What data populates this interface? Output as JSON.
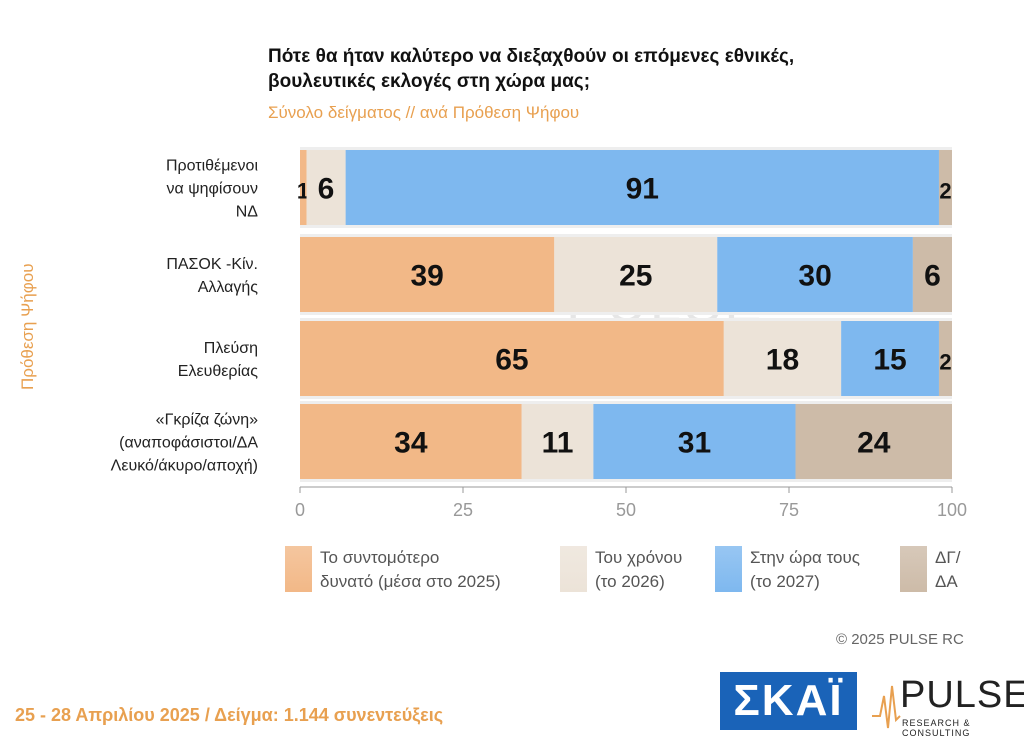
{
  "title": "Πότε θα ήταν καλύτερο να διεξαχθούν οι επόμενες εθνικές, βουλευτικές εκλογές στη χώρα μας;",
  "subtitle": "Σύνολο δείγματος // ανά Πρόθεση Ψήφου",
  "copyright": "©  2025  PULSE RC",
  "footer": "25 - 28 Απριλίου 2025  /  Δείγμα:  1.144 συνεντεύξεις",
  "logos": {
    "skai": "ΣΚΑΪ",
    "pulse": "PULSE",
    "pulse_sub": "RESEARCH & CONSULTING"
  },
  "colors": {
    "soonest": "#f2b887",
    "year2026": "#ece3d8",
    "ontime": "#7eb8ef",
    "dk": "#cdbba8",
    "axis": "#999999",
    "accent": "#e8a050"
  },
  "chart_data": {
    "type": "bar",
    "orientation": "horizontal",
    "stacked": true,
    "title": "Πότε θα ήταν καλύτερο να διεξαχθούν οι επόμενες εθνικές, βουλευτικές εκλογές στη χώρα μας;",
    "subtitle": "Σύνολο δείγματος // ανά Πρόθεση Ψήφου",
    "ylabel": "Πρόθεση Ψήφου",
    "xlabel": "",
    "xlim": [
      0,
      100
    ],
    "xticks": [
      "0",
      "25",
      "50",
      "75",
      "100"
    ],
    "categories": [
      "Προτιθέμενοι να ψηφίσουν ΝΔ",
      "ΠΑΣΟΚ -Κίν. Αλλαγής",
      "Πλεύση Ελευθερίας",
      "«Γκρίζα ζώνη» (αναποφάσιστοι/ΔΑ Λευκό/άκυρο/αποχή)"
    ],
    "category_lines": [
      [
        "Προτιθέμενοι",
        "να ψηφίσουν",
        "ΝΔ"
      ],
      [
        "ΠΑΣΟΚ -Κίν.",
        "Αλλαγής"
      ],
      [
        "Πλεύση",
        "Ελευθερίας"
      ],
      [
        "«Γκρίζα ζώνη»",
        "(αναποφάσιστοι/ΔΑ",
        "Λευκό/άκυρο/αποχή)"
      ]
    ],
    "series": [
      {
        "name": "Το συντομότερο δυνατό (μέσα στο 2025)",
        "legend_lines": [
          "Το συντομότερο",
          "δυνατό (μέσα στο 2025)"
        ],
        "values": [
          1,
          39,
          65,
          34
        ]
      },
      {
        "name": "Του χρόνου (το 2026)",
        "legend_lines": [
          "Του χρόνου",
          "(το 2026)"
        ],
        "values": [
          6,
          25,
          18,
          11
        ]
      },
      {
        "name": "Στην ώρα τους (το 2027)",
        "legend_lines": [
          "Στην ώρα τους",
          "(το 2027)"
        ],
        "values": [
          91,
          30,
          15,
          31
        ]
      },
      {
        "name": "ΔΓ/ΔΑ",
        "legend_lines": [
          "ΔΓ/",
          "ΔΑ"
        ],
        "values": [
          2,
          6,
          2,
          24
        ]
      }
    ],
    "legend_position": "bottom",
    "grid": false
  }
}
